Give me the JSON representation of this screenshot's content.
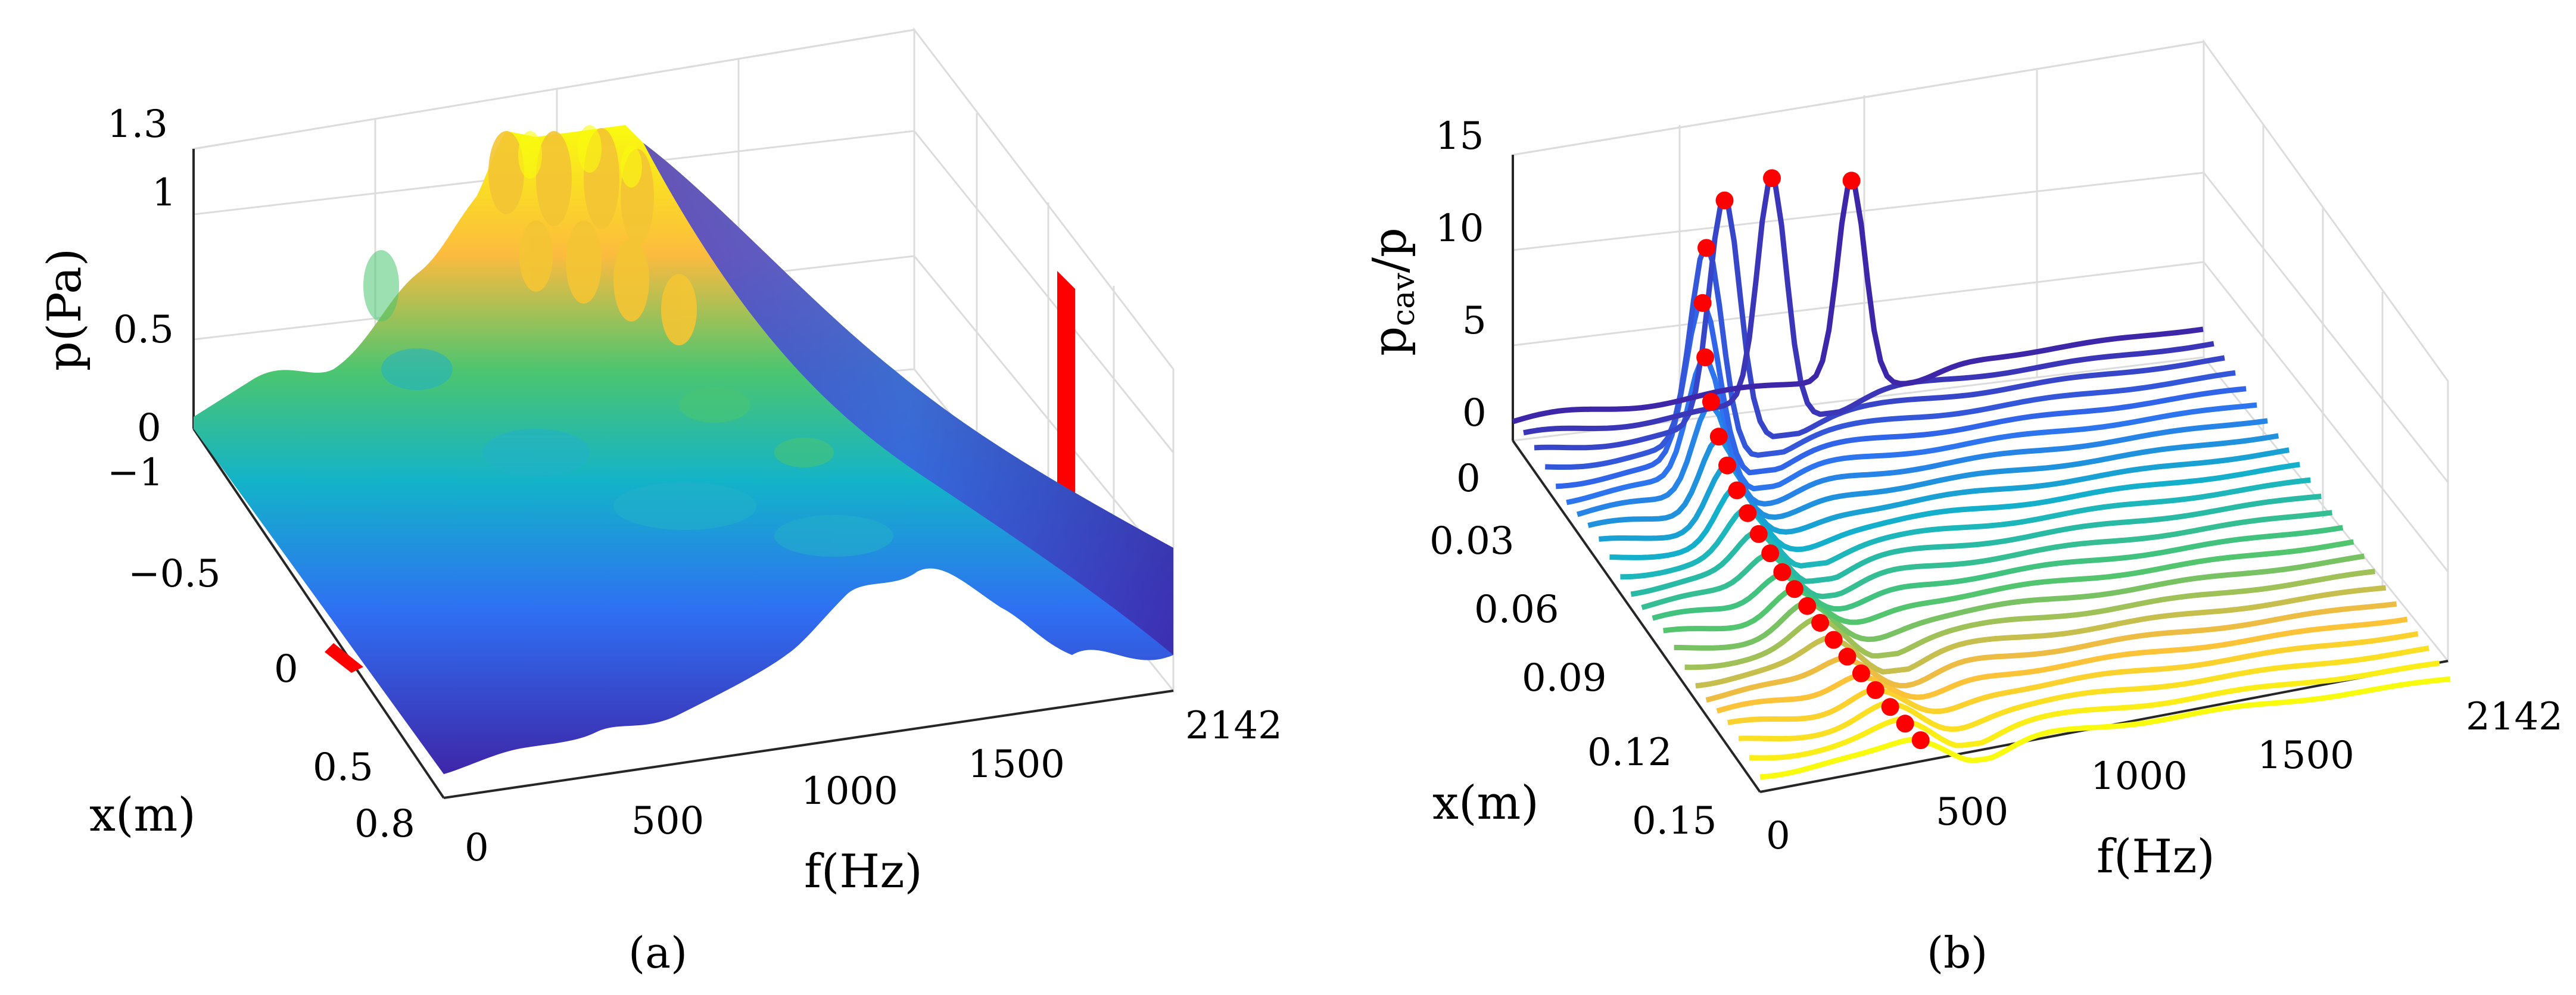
{
  "figure": {
    "panels": [
      {
        "id": "a",
        "label": "(a)"
      },
      {
        "id": "b",
        "label": "(b)"
      }
    ]
  },
  "chart_data": [
    {
      "panel": "a",
      "type": "surface",
      "title": "",
      "xlabel": "f(Hz)",
      "ylabel": "x(m)",
      "zlabel": "p(Pa)",
      "x_ticks": [
        "0",
        "500",
        "1000",
        "1500",
        "2142"
      ],
      "y_ticks": [
        "−1",
        "−0.5",
        "0",
        "0.5",
        "0.8"
      ],
      "z_ticks": [
        "0",
        "0.5",
        "1",
        "1.3"
      ],
      "xlim": [
        0,
        2142
      ],
      "ylim": [
        -1,
        0.8
      ],
      "zlim": [
        0,
        1.3
      ],
      "peak_pressure": 1.25,
      "colormap": [
        "#3e26a8",
        "#2f6ff3",
        "#13b3c9",
        "#4bc570",
        "#fcbb3e",
        "#f9fb0e"
      ],
      "marker_color": "#ff0000"
    },
    {
      "panel": "b",
      "type": "line",
      "title": "",
      "xlabel": "f(Hz)",
      "ylabel": "x(m)",
      "zlabel": "p_cav/p",
      "x_ticks": [
        "0",
        "500",
        "1000",
        "1500",
        "2142"
      ],
      "y_ticks": [
        "0",
        "0.03",
        "0.06",
        "0.09",
        "0.12",
        "0.15"
      ],
      "z_ticks": [
        "0",
        "5",
        "10",
        "15"
      ],
      "xlim": [
        0,
        2142
      ],
      "ylim": [
        0,
        0.15
      ],
      "zlim": [
        0,
        15
      ],
      "series_count": 24,
      "series_x_positions": [
        0.0,
        0.0065,
        0.013,
        0.0196,
        0.0261,
        0.0326,
        0.0391,
        0.0457,
        0.0522,
        0.0587,
        0.0652,
        0.0717,
        0.0783,
        0.0848,
        0.0913,
        0.0978,
        0.1043,
        0.1109,
        0.1174,
        0.1239,
        0.1304,
        0.137,
        0.1435,
        0.15
      ],
      "resonance_peaks_hz": [
        1050,
        770,
        590,
        500,
        455,
        430,
        415,
        405,
        398,
        395,
        395,
        396,
        398,
        402,
        407,
        413,
        420,
        428,
        437,
        447,
        458,
        470,
        483,
        498
      ],
      "resonance_peak_ratio": [
        11.5,
        13.0,
        13.0,
        11.5,
        9.5,
        7.5,
        6.0,
        5.0,
        4.3,
        3.8,
        3.4,
        3.1,
        2.9,
        2.7,
        2.6,
        2.5,
        2.4,
        2.3,
        2.2,
        2.1,
        2.0,
        1.9,
        1.8,
        1.7
      ],
      "marker_color": "#ff0000"
    }
  ]
}
